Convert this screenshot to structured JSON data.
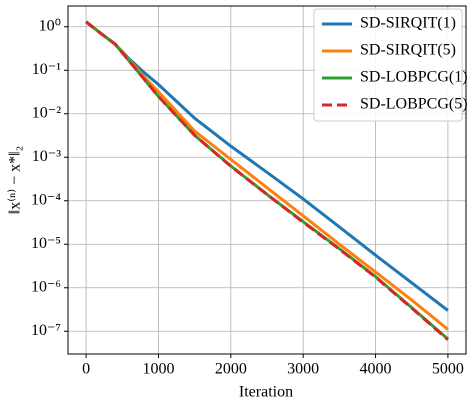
{
  "chart_data": {
    "type": "line",
    "xlabel": "Iteration",
    "ylabel": "‖x⁽ⁿ⁾ − x*‖₂",
    "x": [
      0,
      200,
      400,
      600,
      800,
      1000,
      1500,
      2000,
      2500,
      3000,
      3500,
      4000,
      4500,
      5000
    ],
    "series": [
      {
        "name": "SD-SIRQIT(1)",
        "color": "#1f77b4",
        "linestyle": "solid",
        "values": [
          1.3,
          0.71,
          0.4,
          0.18,
          0.089,
          0.047,
          0.0079,
          0.0018,
          0.00045,
          0.00011,
          2.5e-05,
          5.6e-06,
          1.3e-06,
          3e-07
        ]
      },
      {
        "name": "SD-SIRQIT(5)",
        "color": "#ff7f0e",
        "linestyle": "solid",
        "values": [
          1.3,
          0.71,
          0.4,
          0.17,
          0.071,
          0.032,
          0.004,
          0.00089,
          0.0002,
          4.5e-05,
          1e-05,
          2.3e-06,
          5.2e-07,
          1.1e-07
        ]
      },
      {
        "name": "SD-LOBPCG(1)",
        "color": "#2ca02c",
        "linestyle": "solid",
        "values": [
          1.3,
          0.71,
          0.4,
          0.16,
          0.063,
          0.025,
          0.0032,
          0.00063,
          0.00014,
          3.3e-05,
          7.9e-06,
          1.8e-06,
          3.5e-07,
          6.6e-08
        ]
      },
      {
        "name": "SD-LOBPCG(5)",
        "color": "#d62728",
        "linestyle": "dashed",
        "values": [
          1.3,
          0.71,
          0.4,
          0.16,
          0.063,
          0.025,
          0.0032,
          0.00062,
          0.00014,
          3.2e-05,
          7.7e-06,
          1.75e-06,
          3.4e-07,
          6.4e-08
        ]
      }
    ],
    "xlim": [
      -250,
      5250
    ],
    "xticks": [
      0,
      1000,
      2000,
      3000,
      4000,
      5000
    ],
    "ylim": [
      3,
      3e-08
    ],
    "yscale": "log",
    "yticks": [
      {
        "value": 1,
        "label": "10⁰"
      },
      {
        "value": 0.1,
        "label": "10⁻¹"
      },
      {
        "value": 0.01,
        "label": "10⁻²"
      },
      {
        "value": 0.001,
        "label": "10⁻³"
      },
      {
        "value": 0.0001,
        "label": "10⁻⁴"
      },
      {
        "value": 1e-05,
        "label": "10⁻⁵"
      },
      {
        "value": 1e-06,
        "label": "10⁻⁶"
      },
      {
        "value": 1e-07,
        "label": "10⁻⁷"
      }
    ],
    "grid": true,
    "legend": "upper right"
  }
}
